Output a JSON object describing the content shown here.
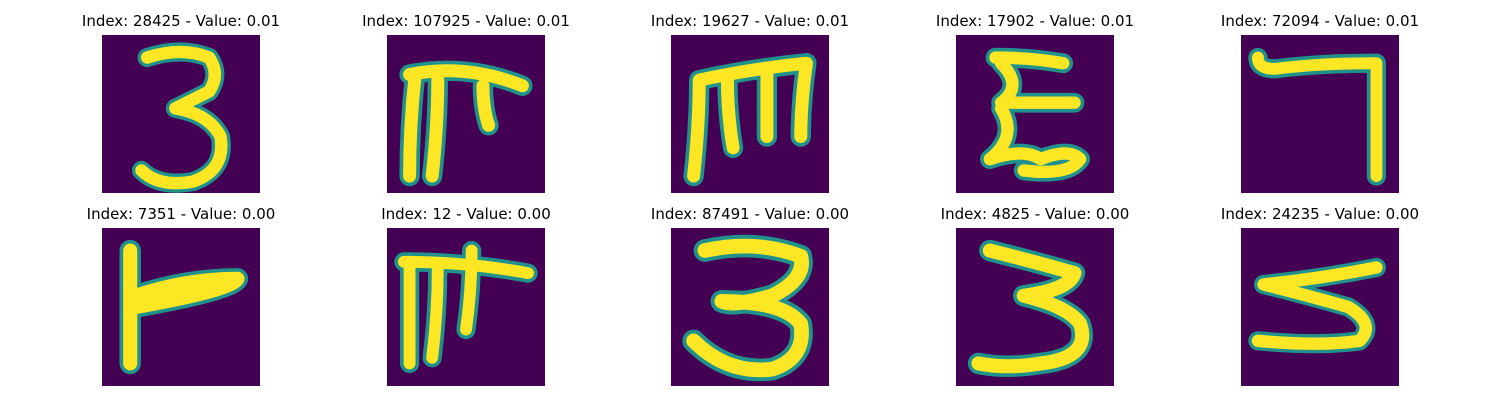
{
  "colormap": {
    "name": "viridis",
    "low": "#440154",
    "mid": "#21918c",
    "high": "#fde725"
  },
  "panels": [
    {
      "title": "Index: 28425 - Value: 0.01",
      "glyph": "3"
    },
    {
      "title": "Index: 107925 - Value: 0.01",
      "glyph": "rake"
    },
    {
      "title": "Index: 19627 - Value: 0.01",
      "glyph": "m-comb"
    },
    {
      "title": "Index: 17902 - Value: 0.01",
      "glyph": "epsilon"
    },
    {
      "title": "Index: 72094 - Value: 0.01",
      "glyph": "seven"
    },
    {
      "title": "Index: 7351 - Value: 0.00",
      "glyph": "flag"
    },
    {
      "title": "Index: 12 - Value: 0.00",
      "glyph": "rake2"
    },
    {
      "title": "Index: 87491 - Value: 0.00",
      "glyph": "3-wide"
    },
    {
      "title": "Index: 4825 - Value: 0.00",
      "glyph": "3-slant"
    },
    {
      "title": "Index: 24235 - Value: 0.00",
      "glyph": "5-like"
    }
  ]
}
